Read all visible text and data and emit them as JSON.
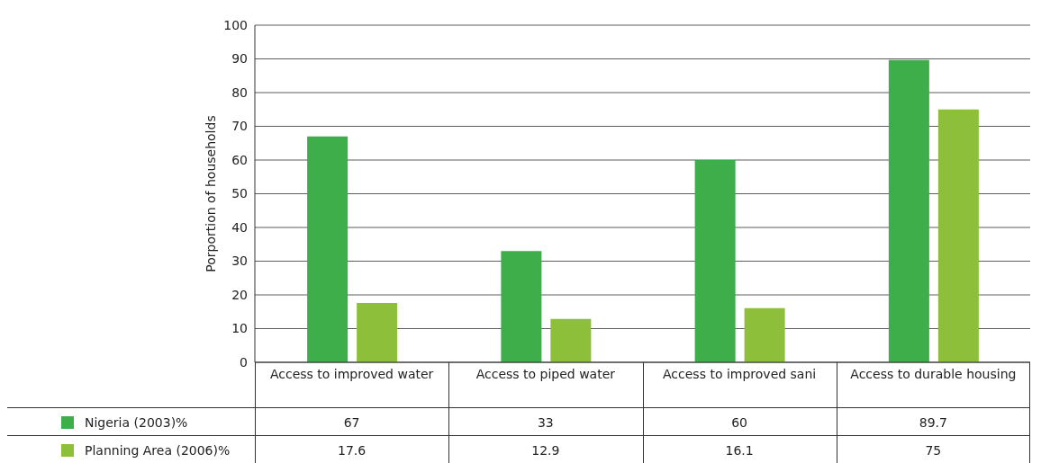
{
  "chart_data": {
    "type": "bar",
    "ylabel": "Porportion of households",
    "categories": [
      "Access to improved water",
      "Access to piped water",
      "Access to improved sani",
      "Access to durable housing"
    ],
    "series": [
      {
        "name": "Nigeria (2003)%",
        "color": "#3dae4a",
        "values": [
          67,
          33,
          60,
          89.7
        ]
      },
      {
        "name": "Planning Area (2006)%",
        "color": "#8dbf3b",
        "values": [
          17.6,
          12.9,
          16.1,
          75
        ]
      }
    ],
    "ylim": [
      0,
      100
    ],
    "yticks": [
      0,
      10,
      20,
      30,
      40,
      50,
      60,
      70,
      80,
      90,
      100
    ],
    "grid": "y",
    "legend": "bottom",
    "data_labels": true
  }
}
